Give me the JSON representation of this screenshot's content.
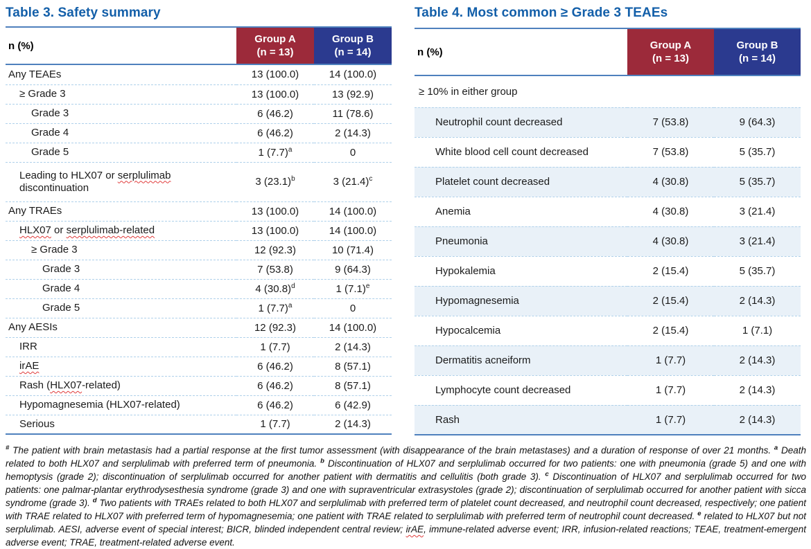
{
  "colors": {
    "title_blue": "#135fa9",
    "rule_blue": "#4e80bd",
    "group_a_maroon": "#9c2a3a",
    "group_b_navy": "#2b3a8f",
    "row_shade_blue": "#e9f1f8",
    "dashed_separator": "#aed0ea",
    "spellcheck_red": "#e03a3a"
  },
  "table3": {
    "title": "Table 3. Safety summary",
    "header": {
      "label": "n (%)",
      "group_a_line1": "Group A",
      "group_a_line2": "(n = 13)",
      "group_b_line1": "Group B",
      "group_b_line2": "(n = 14)"
    },
    "rows": [
      {
        "indent": 0,
        "label": [
          {
            "t": "Any TEAEs"
          }
        ],
        "a": [
          {
            "t": "13 (100.0)"
          }
        ],
        "b": [
          {
            "t": "14 (100.0)"
          }
        ]
      },
      {
        "indent": 1,
        "label": [
          {
            "t": "≥ Grade 3"
          }
        ],
        "a": [
          {
            "t": "13 (100.0)"
          }
        ],
        "b": [
          {
            "t": "13 (92.9)"
          }
        ]
      },
      {
        "indent": 2,
        "label": [
          {
            "t": "Grade 3"
          }
        ],
        "a": [
          {
            "t": "6 (46.2)"
          }
        ],
        "b": [
          {
            "t": "11 (78.6)"
          }
        ]
      },
      {
        "indent": 2,
        "label": [
          {
            "t": "Grade 4"
          }
        ],
        "a": [
          {
            "t": "6 (46.2)"
          }
        ],
        "b": [
          {
            "t": "2 (14.3)"
          }
        ]
      },
      {
        "indent": 2,
        "label": [
          {
            "t": "Grade 5"
          }
        ],
        "a": [
          {
            "t": "1 (7.7)"
          },
          {
            "t": "a",
            "sup": true
          }
        ],
        "b": [
          {
            "t": "0"
          }
        ]
      },
      {
        "indent": 1,
        "tall": true,
        "label": [
          {
            "t": "Leading to HLX07 or "
          },
          {
            "t": "serplulimab",
            "sq": true
          },
          {
            "t": " discontinuation"
          }
        ],
        "a": [
          {
            "t": "3 (23.1)"
          },
          {
            "t": "b",
            "sup": true
          }
        ],
        "b": [
          {
            "t": "3 (21.4)"
          },
          {
            "t": "c",
            "sup": true
          }
        ]
      },
      {
        "indent": 0,
        "label": [
          {
            "t": "Any TRAEs"
          }
        ],
        "a": [
          {
            "t": "13 (100.0)"
          }
        ],
        "b": [
          {
            "t": "14 (100.0)"
          }
        ]
      },
      {
        "indent": 1,
        "label": [
          {
            "t": "HLX07",
            "sq": true
          },
          {
            "t": " or "
          },
          {
            "t": "serplulimab-related",
            "sq": true
          }
        ],
        "a": [
          {
            "t": "13 (100.0)"
          }
        ],
        "b": [
          {
            "t": "14 (100.0)"
          }
        ]
      },
      {
        "indent": 2,
        "label": [
          {
            "t": "≥ Grade 3"
          }
        ],
        "a": [
          {
            "t": "12 (92.3)"
          }
        ],
        "b": [
          {
            "t": "10 (71.4)"
          }
        ]
      },
      {
        "indent": 3,
        "label": [
          {
            "t": "Grade 3"
          }
        ],
        "a": [
          {
            "t": "7 (53.8)"
          }
        ],
        "b": [
          {
            "t": "9 (64.3)"
          }
        ]
      },
      {
        "indent": 3,
        "label": [
          {
            "t": "Grade 4"
          }
        ],
        "a": [
          {
            "t": "4 (30.8)"
          },
          {
            "t": "d",
            "sup": true
          }
        ],
        "b": [
          {
            "t": "1 (7.1)"
          },
          {
            "t": "e",
            "sup": true
          }
        ]
      },
      {
        "indent": 3,
        "label": [
          {
            "t": "Grade 5"
          }
        ],
        "a": [
          {
            "t": "1 (7.7)"
          },
          {
            "t": "a",
            "sup": true
          }
        ],
        "b": [
          {
            "t": "0"
          }
        ]
      },
      {
        "indent": 0,
        "label": [
          {
            "t": "Any AESIs"
          }
        ],
        "a": [
          {
            "t": "12 (92.3)"
          }
        ],
        "b": [
          {
            "t": "14 (100.0)"
          }
        ]
      },
      {
        "indent": 1,
        "label": [
          {
            "t": "IRR"
          }
        ],
        "a": [
          {
            "t": "1 (7.7)"
          }
        ],
        "b": [
          {
            "t": "2 (14.3)"
          }
        ]
      },
      {
        "indent": 1,
        "label": [
          {
            "t": "irAE",
            "sq": true
          }
        ],
        "a": [
          {
            "t": "6 (46.2)"
          }
        ],
        "b": [
          {
            "t": "8 (57.1)"
          }
        ]
      },
      {
        "indent": 1,
        "label": [
          {
            "t": "Rash ("
          },
          {
            "t": "HLX07",
            "sq": true
          },
          {
            "t": "-related)"
          }
        ],
        "a": [
          {
            "t": "6 (46.2)"
          }
        ],
        "b": [
          {
            "t": "8 (57.1)"
          }
        ]
      },
      {
        "indent": 1,
        "label": [
          {
            "t": "Hypomagnesemia (HLX07-related)"
          }
        ],
        "a": [
          {
            "t": "6 (46.2)"
          }
        ],
        "b": [
          {
            "t": "6 (42.9)"
          }
        ]
      },
      {
        "indent": 1,
        "label": [
          {
            "t": "Serious"
          }
        ],
        "a": [
          {
            "t": "1 (7.7)"
          }
        ],
        "b": [
          {
            "t": "2 (14.3)"
          }
        ]
      }
    ]
  },
  "table4": {
    "title": "Table 4. Most common ≥ Grade 3 TEAEs",
    "header": {
      "label": "n (%)",
      "group_a_line1": "Group A",
      "group_a_line2": "(n = 13)",
      "group_b_line1": "Group B",
      "group_b_line2": "(n = 14)"
    },
    "section_label": "≥ 10% in either group",
    "rows": [
      {
        "label": "Neutrophil count decreased",
        "a": "7 (53.8)",
        "b": "9 (64.3)",
        "shade": true
      },
      {
        "label": "White blood cell count decreased",
        "a": "7 (53.8)",
        "b": "5 (35.7)",
        "shade": false
      },
      {
        "label": "Platelet count decreased",
        "a": "4 (30.8)",
        "b": "5 (35.7)",
        "shade": true
      },
      {
        "label": "Anemia",
        "a": "4 (30.8)",
        "b": "3 (21.4)",
        "shade": false
      },
      {
        "label": "Pneumonia",
        "a": "4 (30.8)",
        "b": "3 (21.4)",
        "shade": true
      },
      {
        "label": "Hypokalemia",
        "a": "2 (15.4)",
        "b": "5 (35.7)",
        "shade": false
      },
      {
        "label": "Hypomagnesemia",
        "a": "2 (15.4)",
        "b": "2 (14.3)",
        "shade": true
      },
      {
        "label": "Hypocalcemia",
        "a": "2 (15.4)",
        "b": "1 (7.1)",
        "shade": false
      },
      {
        "label": "Dermatitis acneiform",
        "a": "1 (7.7)",
        "b": "2 (14.3)",
        "shade": true
      },
      {
        "label": "Lymphocyte count decreased",
        "a": "1 (7.7)",
        "b": "2 (14.3)",
        "shade": false
      },
      {
        "label": "Rash",
        "a": "1 (7.7)",
        "b": "2 (14.3)",
        "shade": true
      }
    ]
  },
  "footnote": {
    "segments": [
      {
        "t": "#",
        "sup": true
      },
      {
        "t": " The patient with brain metastasis had a partial response at the first tumor assessment (with disappearance of the brain metastases) and a duration of response of over 21 months. "
      },
      {
        "t": "a",
        "sup": true
      },
      {
        "t": " Death related to both HLX07 and serplulimab with preferred term of pneumonia. "
      },
      {
        "t": "b",
        "sup": true
      },
      {
        "t": " Discontinuation of HLX07 and serplulimab occurred for two patients: one with pneumonia (grade 5) and one with hemoptysis (grade 2); discontinuation of serplulimab occurred for another patient with dermatitis and cellulitis (both grade 3). "
      },
      {
        "t": "c",
        "sup": true
      },
      {
        "t": " Discontinuation of HLX07 and serplulimab occurred for two patients: one palmar-plantar erythrodysesthesia syndrome (grade 3) and one with supraventricular extrasystoles (grade 2); discontinuation of serplulimab occurred for another patient with sicca syndrome (grade 3). "
      },
      {
        "t": "d",
        "sup": true
      },
      {
        "t": " Two patients with TRAEs related to both HLX07 and serplulimab with preferred term of platelet count decreased, and neutrophil count decreased, respectively; one patient with TRAE related to HLX07 with preferred term of hypomagnesemia; one patient with TRAE related to serplulimab with preferred term of neutrophil count decreased. "
      },
      {
        "t": "e",
        "sup": true
      },
      {
        "t": " related to HLX07 but not serplulimab. AESI, adverse event of special interest; BICR, blinded independent central review; "
      },
      {
        "t": "irAE",
        "sq": true
      },
      {
        "t": ", immune-related adverse event; IRR, infusion-related reactions; TEAE, treatment-emergent adverse event; TRAE, treatment-related adverse event."
      }
    ]
  }
}
